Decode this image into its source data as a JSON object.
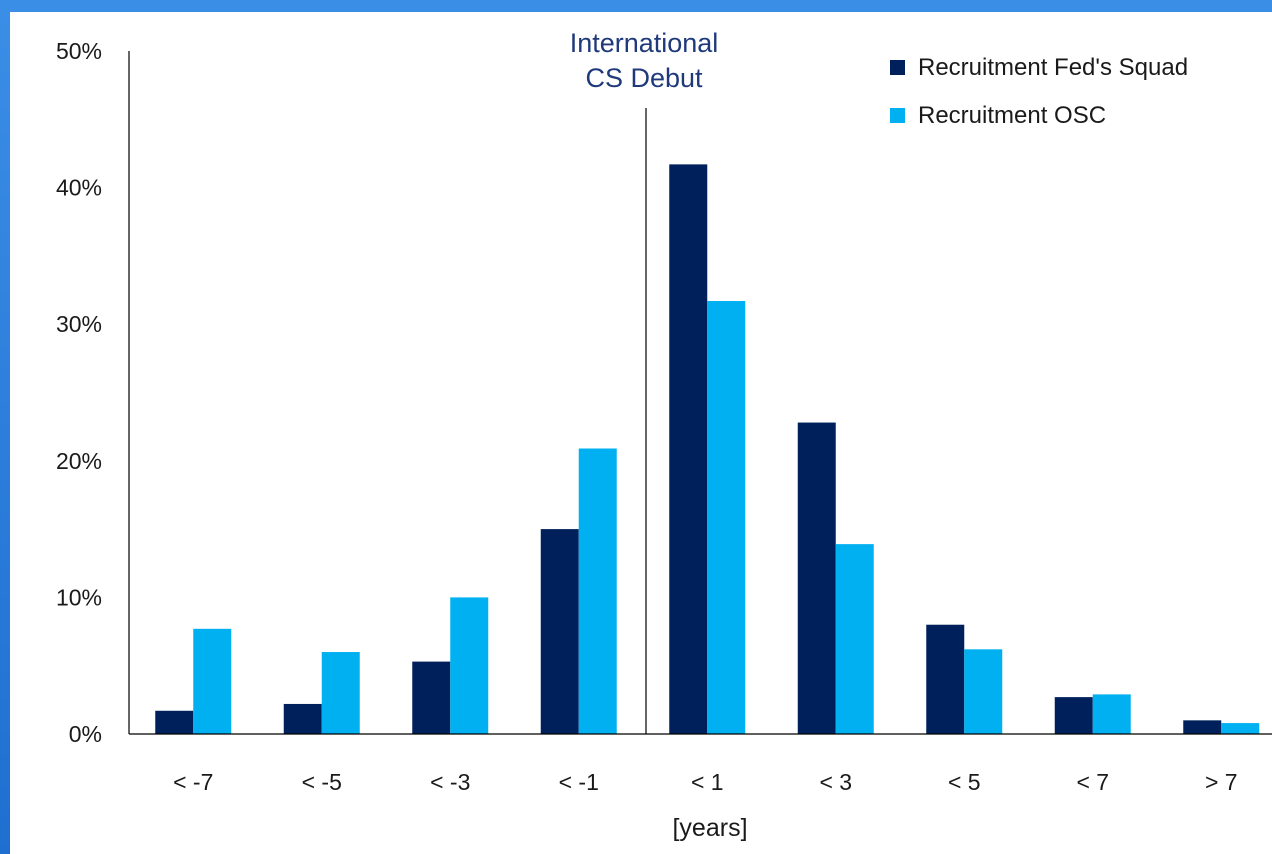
{
  "chart_data": {
    "type": "bar",
    "categories": [
      "< -7",
      "< -5",
      "< -3",
      "< -1",
      "< 1",
      "< 3",
      "< 5",
      "< 7",
      "> 7"
    ],
    "series": [
      {
        "name": "Recruitment Fed's Squad",
        "color": "#00205b",
        "values": [
          1.7,
          2.2,
          5.3,
          15.0,
          41.7,
          22.8,
          8.0,
          2.7,
          1.0
        ]
      },
      {
        "name": "Recruitment OSC",
        "color": "#00b0f0",
        "values": [
          7.7,
          6.0,
          10.0,
          20.9,
          31.7,
          13.9,
          6.2,
          2.9,
          0.8
        ]
      }
    ],
    "yticks": [
      "0%",
      "10%",
      "20%",
      "30%",
      "40%",
      "50%"
    ],
    "ylim": [
      0,
      50
    ],
    "xlabel": "[years]",
    "ylabel": "",
    "title": "",
    "annotation": {
      "text_line1": "International",
      "text_line2": "CS Debut",
      "color": "#1f3a7a"
    },
    "legend_position": "top-right",
    "grid": false
  }
}
